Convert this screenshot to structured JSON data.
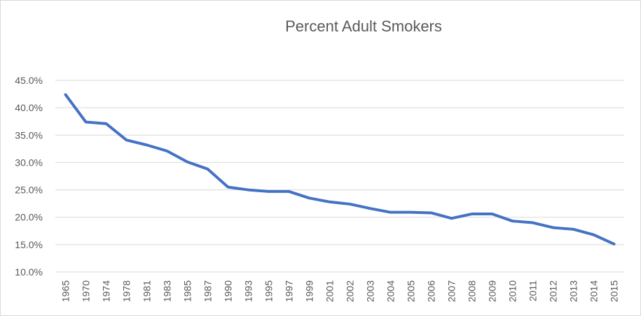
{
  "chart_data": {
    "type": "line",
    "title": "Percent Adult Smokers",
    "xlabel": "",
    "ylabel": "",
    "categories": [
      "1965",
      "1970",
      "1974",
      "1978",
      "1981",
      "1983",
      "1985",
      "1987",
      "1990",
      "1993",
      "1995",
      "1997",
      "1999",
      "2001",
      "2002",
      "2003",
      "2004",
      "2005",
      "2006",
      "2007",
      "2008",
      "2009",
      "2010",
      "2011",
      "2012",
      "2013",
      "2014",
      "2015"
    ],
    "series": [
      {
        "values": [
          42.4,
          37.4,
          37.1,
          34.1,
          33.2,
          32.1,
          30.1,
          28.8,
          25.5,
          25.0,
          24.7,
          24.7,
          23.5,
          22.8,
          22.4,
          21.6,
          20.9,
          20.9,
          20.8,
          19.8,
          20.6,
          20.6,
          19.3,
          19.0,
          18.1,
          17.8,
          16.8,
          15.1
        ]
      }
    ],
    "ylim": [
      10,
      45
    ],
    "yticks": [
      "10.0%",
      "15.0%",
      "20.0%",
      "25.0%",
      "30.0%",
      "35.0%",
      "40.0%",
      "45.0%"
    ],
    "grid": true,
    "legend": "none",
    "colors": {
      "series": "#4472c4",
      "grid": "#d9d9d9",
      "text": "#595959"
    }
  }
}
